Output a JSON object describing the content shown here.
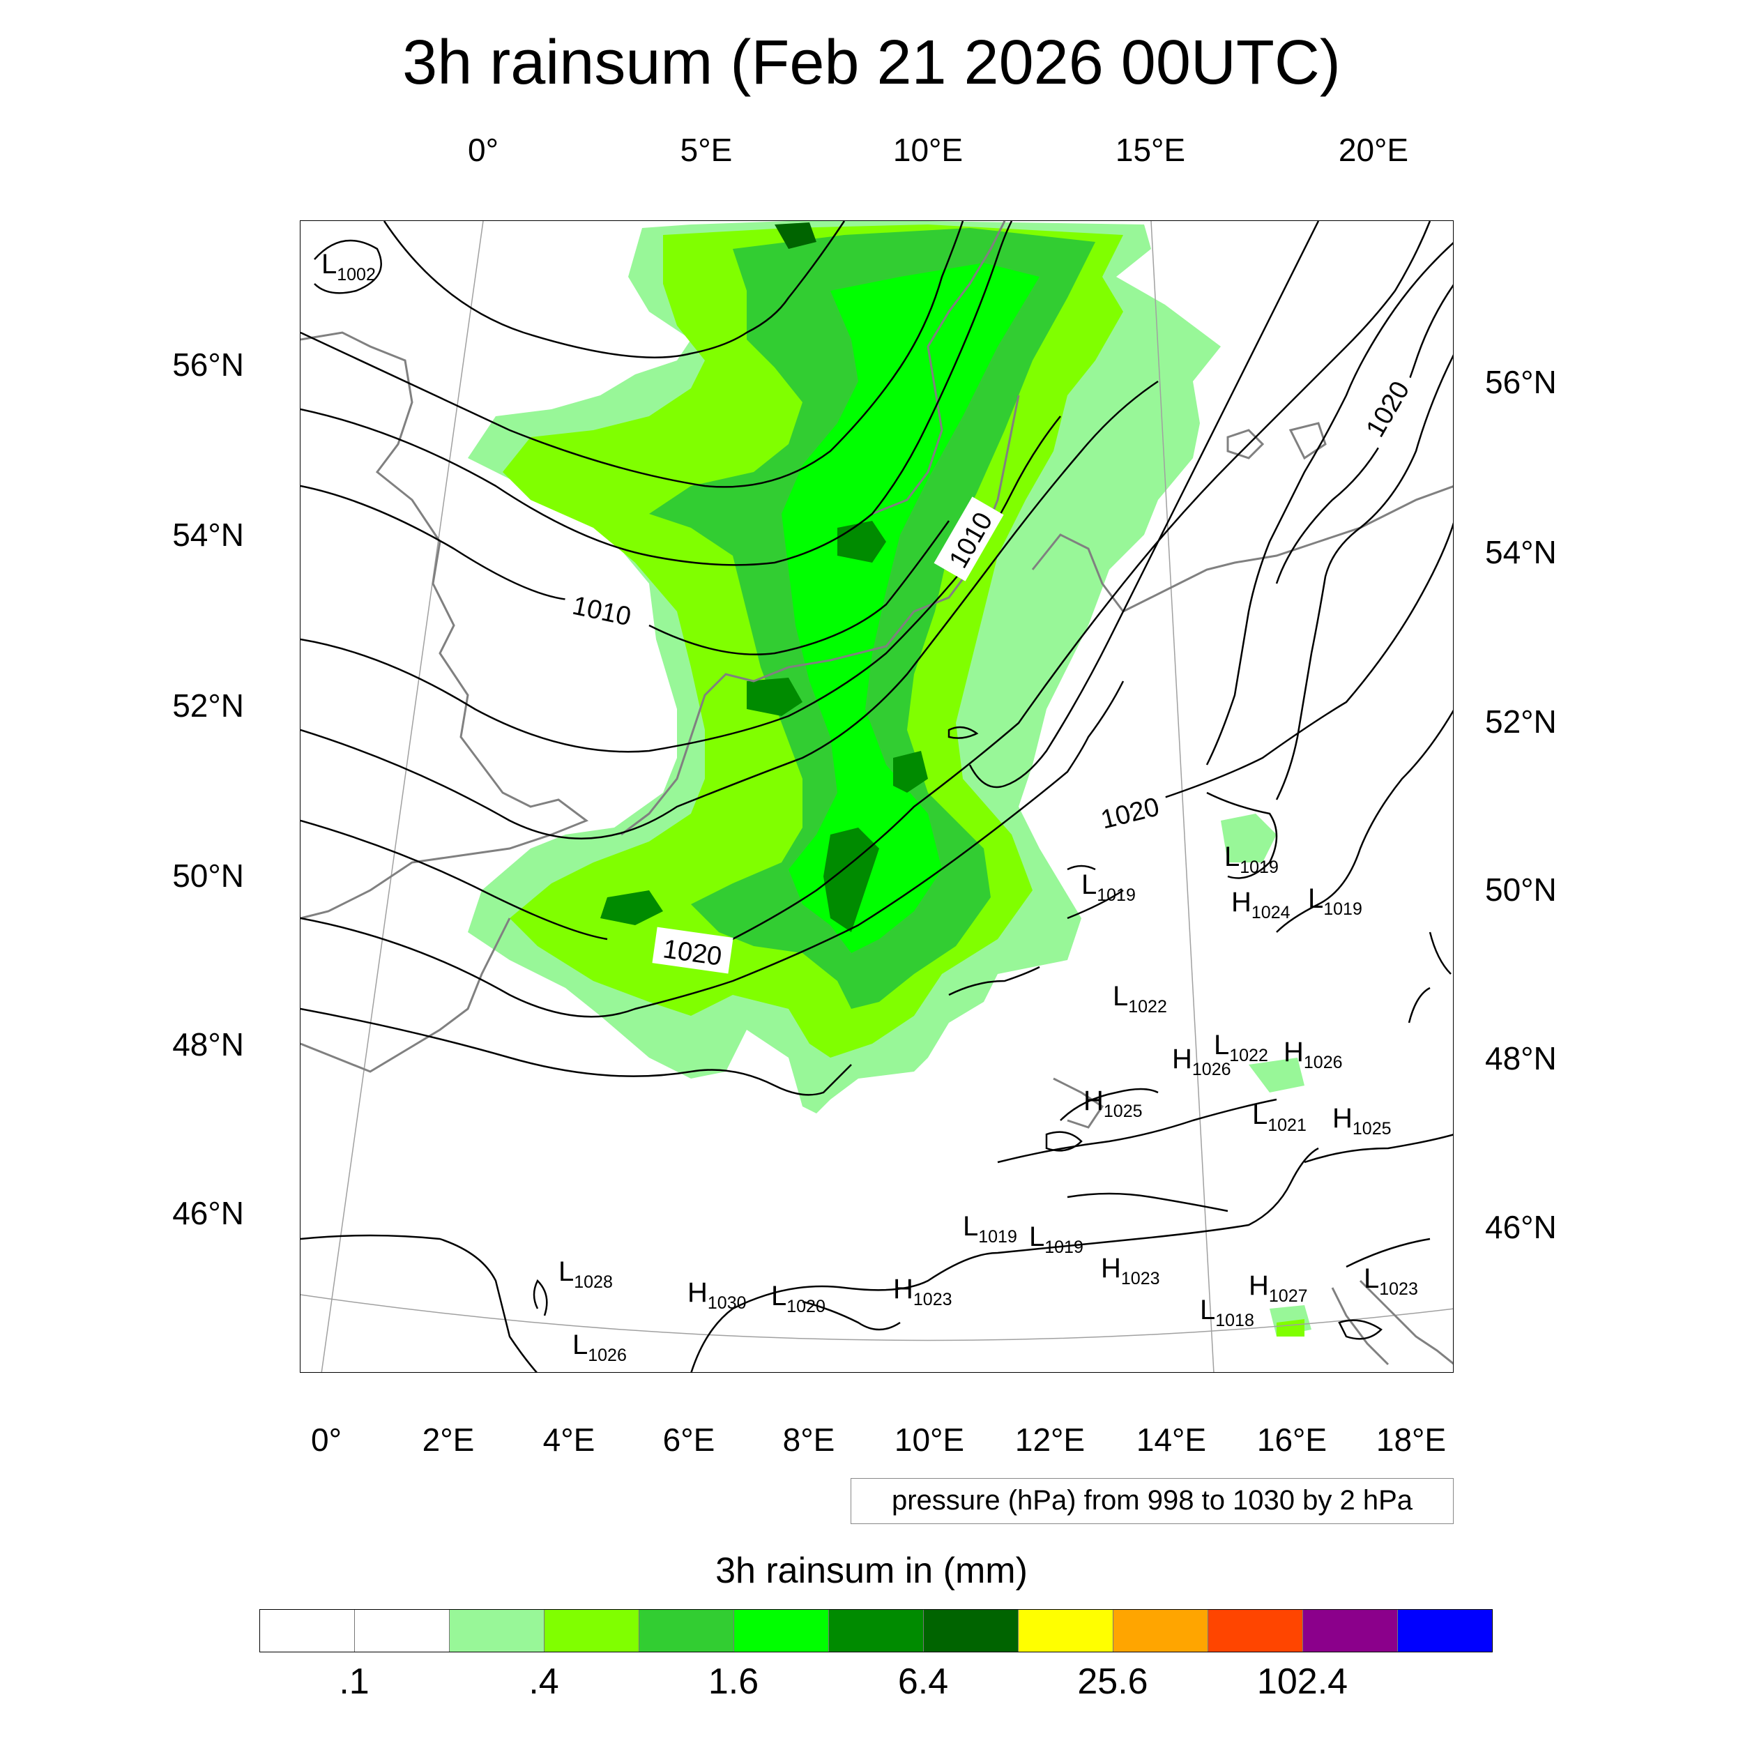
{
  "title": "3h rainsum (Feb 21 2026 00UTC)",
  "axes": {
    "top_lon": [
      "0°",
      "5°E",
      "10°E",
      "15°E",
      "20°E"
    ],
    "bottom_lon": [
      "0°",
      "2°E",
      "4°E",
      "6°E",
      "8°E",
      "10°E",
      "12°E",
      "14°E",
      "16°E",
      "18°E"
    ],
    "left_lat": [
      "56°N",
      "54°N",
      "52°N",
      "50°N",
      "48°N",
      "46°N"
    ],
    "right_lat": [
      "56°N",
      "54°N",
      "52°N",
      "50°N",
      "48°N",
      "46°N"
    ]
  },
  "contour_labels": [
    "1010",
    "1010",
    "1020",
    "1020",
    "1020"
  ],
  "pressure_centers": [
    {
      "kind": "L",
      "value": "1002"
    },
    {
      "kind": "L",
      "value": "1019"
    },
    {
      "kind": "L",
      "value": "1019"
    },
    {
      "kind": "H",
      "value": "1024"
    },
    {
      "kind": "L",
      "value": "1019"
    },
    {
      "kind": "L",
      "value": "1022"
    },
    {
      "kind": "L",
      "value": "1022"
    },
    {
      "kind": "H",
      "value": "1026"
    },
    {
      "kind": "H",
      "value": "1026"
    },
    {
      "kind": "H",
      "value": "1025"
    },
    {
      "kind": "L",
      "value": "1021"
    },
    {
      "kind": "H",
      "value": "1025"
    },
    {
      "kind": "L",
      "value": "1019"
    },
    {
      "kind": "L",
      "value": "1019"
    },
    {
      "kind": "H",
      "value": "1023"
    },
    {
      "kind": "H",
      "value": "1027"
    },
    {
      "kind": "L",
      "value": "1023"
    },
    {
      "kind": "L",
      "value": "1028"
    },
    {
      "kind": "H",
      "value": "1030"
    },
    {
      "kind": "L",
      "value": "1020"
    },
    {
      "kind": "H",
      "value": "1023"
    },
    {
      "kind": "L",
      "value": "1018"
    },
    {
      "kind": "L",
      "value": "1026"
    }
  ],
  "info_box": "pressure (hPa) from 998 to 1030 by 2 hPa",
  "legend": {
    "title": "3h rainsum in (mm)",
    "colors": [
      "#ffffff",
      "#ffffff",
      "#98f798",
      "#80ff00",
      "#32cd32",
      "#00ff00",
      "#008b00",
      "#006400",
      "#ffff00",
      "#ffa500",
      "#ff4500",
      "#8b008b",
      "#0000ff"
    ],
    "labels": [
      ".1",
      ".4",
      "1.6",
      "6.4",
      "25.6",
      "102.4"
    ]
  },
  "colors": {
    "coastline": "#808080",
    "contour": "#000000",
    "graticule": "#a0a0a0"
  }
}
